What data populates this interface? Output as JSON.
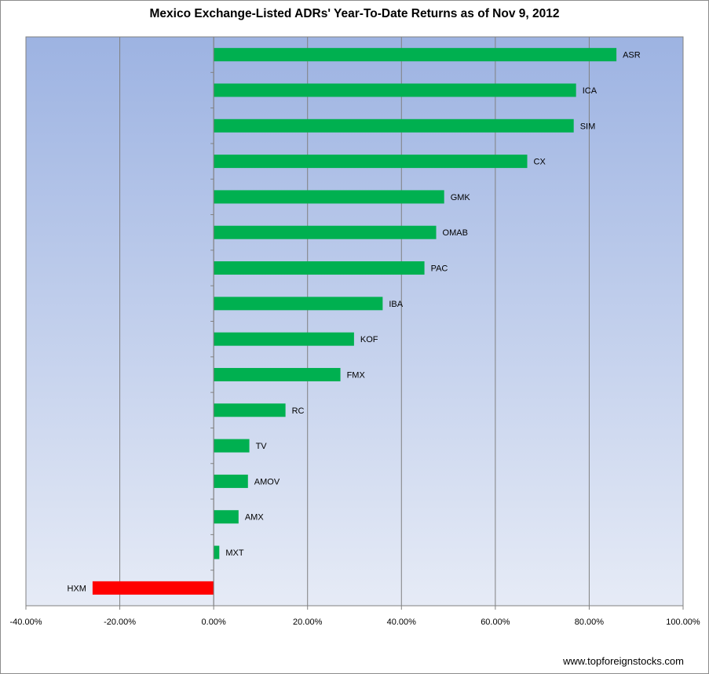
{
  "chart_data": {
    "type": "bar",
    "orientation": "horizontal",
    "title": "Mexico Exchange-Listed ADRs' Year-To-Date Returns as of Nov 9, 2012",
    "xlabel": "",
    "ylabel": "",
    "xlim": [
      -40,
      100
    ],
    "x_ticks": [
      -40,
      -20,
      0,
      20,
      40,
      60,
      80,
      100
    ],
    "x_tick_labels": [
      "-40.00%",
      "-20.00%",
      "0.00%",
      "20.00%",
      "40.00%",
      "60.00%",
      "80.00%",
      "100.00%"
    ],
    "categories": [
      "ASR",
      "ICA",
      "SIM",
      "CX",
      "GMK",
      "OMAB",
      "PAC",
      "IBA",
      "KOF",
      "FMX",
      "RC",
      "TV",
      "AMOV",
      "AMX",
      "MXT",
      "HXM"
    ],
    "values": [
      85.8,
      77.2,
      76.7,
      66.8,
      49.1,
      47.4,
      44.9,
      36.0,
      29.9,
      27.0,
      15.3,
      7.6,
      7.3,
      5.3,
      1.2,
      -25.8
    ],
    "colors": {
      "positive": "#00b050",
      "negative": "#ff0000",
      "grid": "#808080",
      "plot_top": "#9db3e2",
      "plot_bottom": "#e6ebf6"
    },
    "grid": true,
    "legend": "none"
  },
  "footer": {
    "source": "www.topforeignstocks.com"
  }
}
